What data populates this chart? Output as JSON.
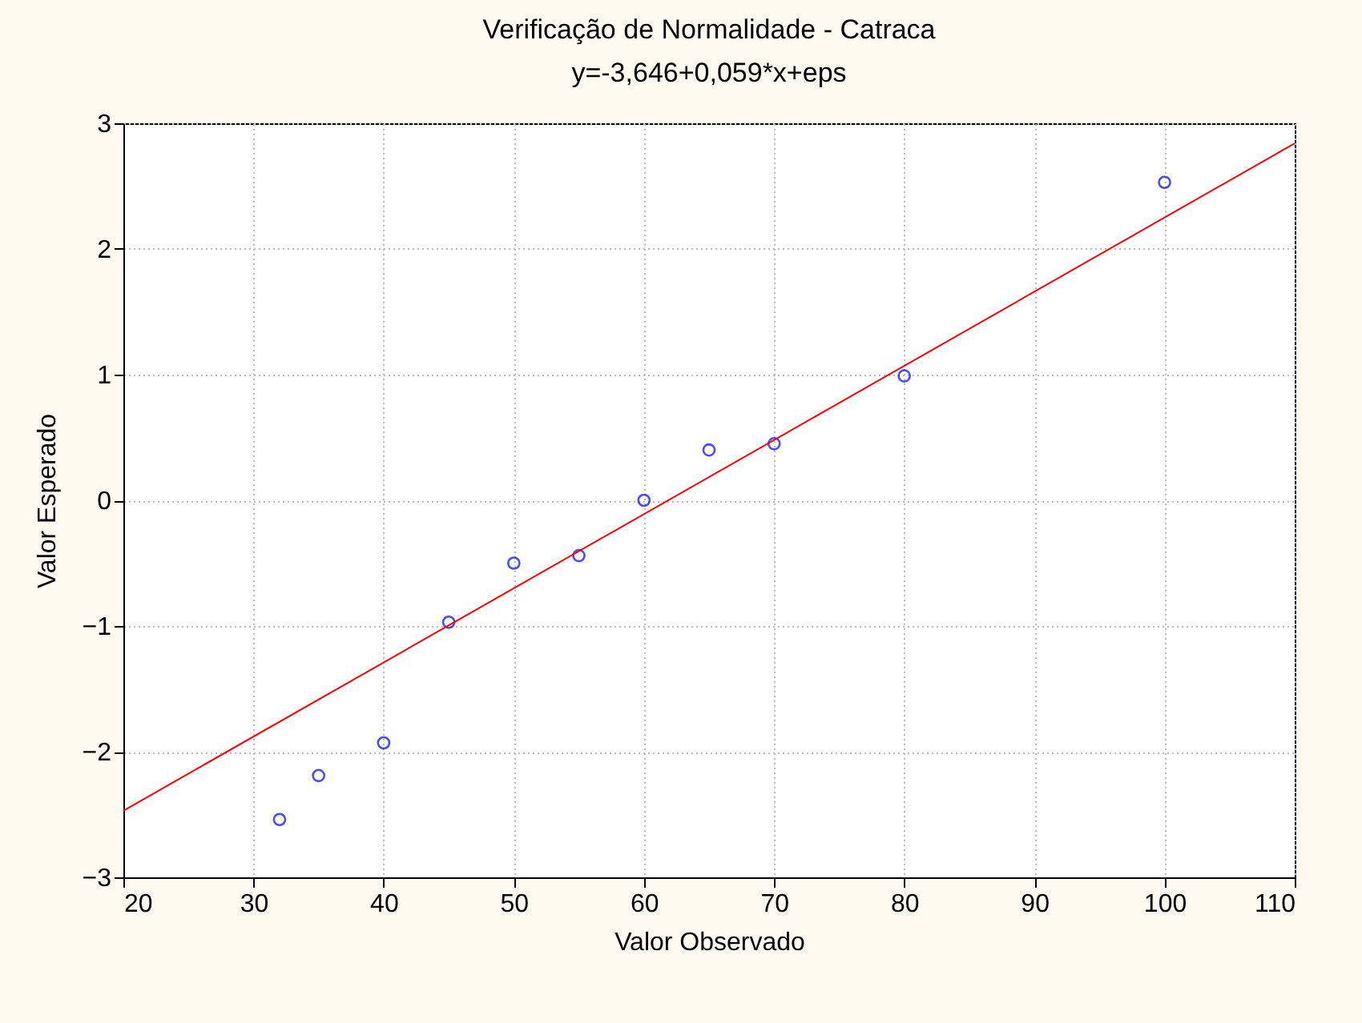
{
  "chart_data": {
    "type": "scatter",
    "title": "Verificação de Normalidade - Catraca",
    "subtitle": "y=-3,646+0,059*x+eps",
    "xlabel": "Valor Observado",
    "ylabel": "Valor Esperado",
    "x": [
      32,
      35,
      40,
      45,
      50,
      55,
      60,
      65,
      70,
      80,
      100
    ],
    "series": [
      {
        "color": "#0000ff",
        "marker": "circle",
        "values": [
          -2.54,
          -2.19,
          -1.93,
          -0.97,
          -0.5,
          -0.44,
          0,
          0.4,
          0.45,
          0.99,
          2.53
        ]
      },
      {
        "type": "line",
        "color": "#ff0000",
        "x": [
          20,
          110
        ],
        "values": [
          -2.47,
          2.84
        ]
      }
    ],
    "xlim": [
      20,
      110
    ],
    "xticks": [
      20,
      30,
      40,
      50,
      60,
      70,
      80,
      90,
      100,
      110
    ],
    "ylim": [
      -3,
      3
    ],
    "yticks": [
      -3,
      -2,
      -1,
      0,
      1,
      2,
      3
    ],
    "grid": true,
    "legend": false
  }
}
